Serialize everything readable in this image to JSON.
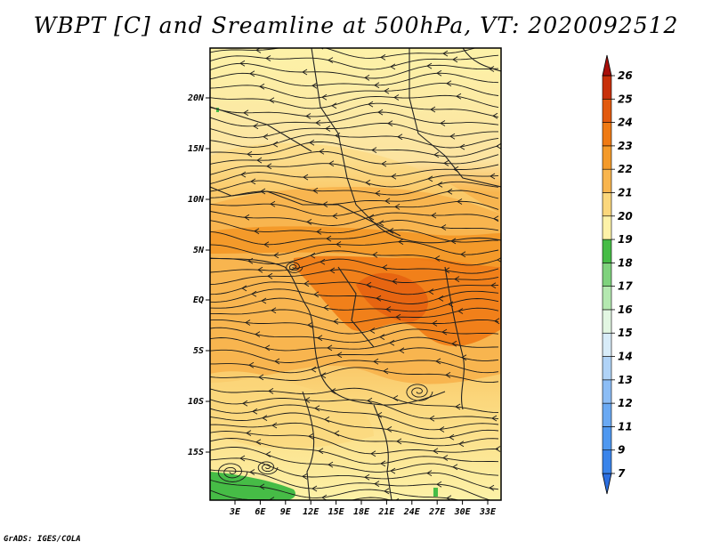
{
  "title": "WBPT [C] and Sreamline at 500hPa, VT: 2020092512",
  "credit": "GrADS: IGES/COLA",
  "map": {
    "lat_labels": [
      "20N",
      "15N",
      "10N",
      "5N",
      "EQ",
      "5S",
      "10S",
      "15S"
    ],
    "lon_labels": [
      "3E",
      "6E",
      "9E",
      "12E",
      "15E",
      "18E",
      "21E",
      "24E",
      "27E",
      "30E",
      "33E"
    ]
  },
  "colorbar": {
    "labels": [
      "7",
      "9",
      "11",
      "12",
      "13",
      "14",
      "15",
      "16",
      "17",
      "18",
      "19",
      "20",
      "21",
      "22",
      "23",
      "24",
      "25",
      "26"
    ],
    "colors": [
      "#2c6fe0",
      "#3a84ea",
      "#4f98f0",
      "#6aa9f3",
      "#8cbdf5",
      "#b0d3f7",
      "#d8ecf9",
      "#e2f6e2",
      "#b4e8b0",
      "#7fd27d",
      "#46bc46",
      "#fdf2a8",
      "#fbd77c",
      "#f8b54f",
      "#f49a2a",
      "#ef7a14",
      "#e25a0e",
      "#c8300a",
      "#a80f0a"
    ]
  },
  "colors": {
    "background": "#ffffff",
    "pale_yellow": "#fdf2a8",
    "yellow": "#fbd77c",
    "light_orange": "#f8b54f",
    "orange": "#f49a2a",
    "dark_orange": "#ef7a14",
    "green": "#46bc46"
  }
}
